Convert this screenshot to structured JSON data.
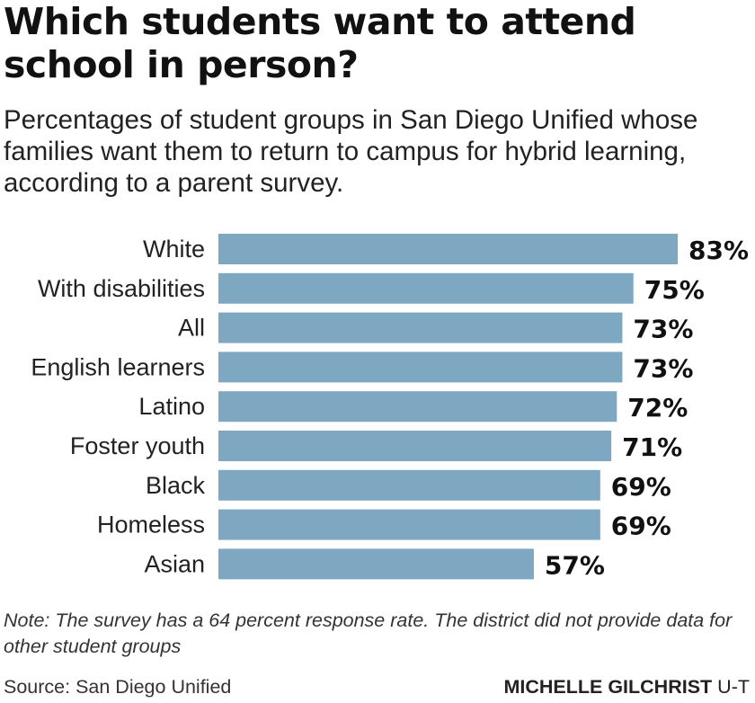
{
  "chart_data": {
    "type": "bar",
    "orientation": "horizontal",
    "title": "Which students want to attend school in person?",
    "subtitle": "Percentages of student groups in San Diego Unified whose families want them to return to campus for hybrid learning, according to a parent survey.",
    "categories": [
      "White",
      "With disabilities",
      "All",
      "English learners",
      "Latino",
      "Foster youth",
      "Black",
      "Homeless",
      "Asian"
    ],
    "values": [
      83,
      75,
      73,
      73,
      72,
      71,
      69,
      69,
      57
    ],
    "value_labels": [
      "83%",
      "75%",
      "73%",
      "73%",
      "72%",
      "71%",
      "69%",
      "69%",
      "57%"
    ],
    "unit": "%",
    "xlim": [
      0,
      83
    ],
    "grid": false,
    "bar_color": "#7ea8c2"
  },
  "note": "Note: The survey has a 64 percent response rate. The district did not provide data for other student groups",
  "source": "Source: San Diego Unified",
  "credit": {
    "name": "MICHELLE GILCHRIST",
    "org": "U-T"
  }
}
